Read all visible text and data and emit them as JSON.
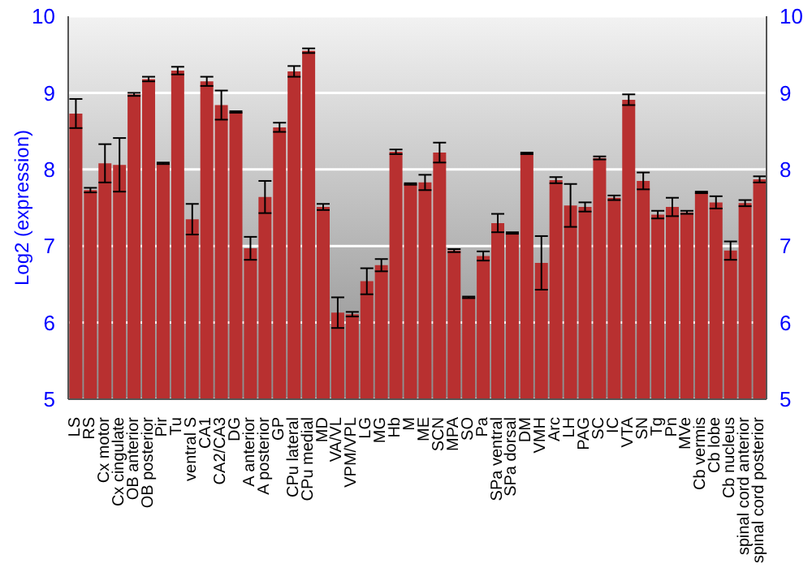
{
  "chart_data": {
    "type": "bar",
    "ylabel": "Log2 (expression)",
    "categories": [
      "LS",
      "RS",
      "Cx motor",
      "Cx cingulate",
      "OB anterior",
      "OB posterior",
      "Pir",
      "Tu",
      "ventral S",
      "CA1",
      "CA2/CA3",
      "DG",
      "A anterior",
      "A posterior",
      "GP",
      "CPu lateral",
      "CPu medial",
      "MD",
      "VA/VL",
      "VPM/VPL",
      "LG",
      "MG",
      "Hb",
      "M",
      "ME",
      "SCN",
      "MPA",
      "SO",
      "Pa",
      "SPa ventral",
      "SPa dorsal",
      "DM",
      "VMH",
      "Arc",
      "LH",
      "PAG",
      "SC",
      "IC",
      "VTA",
      "SN",
      "Tg",
      "Pn",
      "MVe",
      "Cb vermis",
      "Cb lobe",
      "Cb nucleus",
      "spinal cord anterior",
      "spinal cord posterior"
    ],
    "values": [
      8.73,
      7.73,
      8.08,
      8.06,
      8.98,
      9.18,
      8.08,
      9.29,
      7.35,
      9.15,
      8.84,
      8.75,
      6.97,
      7.64,
      8.55,
      9.28,
      9.55,
      7.51,
      6.13,
      6.11,
      6.54,
      6.75,
      8.23,
      7.81,
      7.83,
      8.22,
      6.94,
      6.33,
      6.87,
      7.3,
      7.17,
      8.21,
      6.78,
      7.86,
      7.53,
      7.51,
      8.15,
      7.63,
      8.91,
      7.85,
      7.41,
      7.51,
      7.44,
      7.7,
      7.57,
      6.94,
      7.56,
      7.87
    ],
    "errors": [
      0.19,
      0.03,
      0.25,
      0.35,
      0.02,
      0.03,
      0.01,
      0.05,
      0.2,
      0.06,
      0.19,
      0.01,
      0.15,
      0.21,
      0.06,
      0.07,
      0.03,
      0.04,
      0.2,
      0.03,
      0.17,
      0.08,
      0.03,
      0.01,
      0.1,
      0.13,
      0.02,
      0.01,
      0.06,
      0.12,
      0.01,
      0.01,
      0.35,
      0.04,
      0.28,
      0.06,
      0.02,
      0.03,
      0.07,
      0.11,
      0.05,
      0.12,
      0.02,
      0.01,
      0.08,
      0.12,
      0.04,
      0.04
    ],
    "color": "#b83030",
    "ylim": [
      5,
      10
    ],
    "yticks": [
      5,
      6,
      7,
      8,
      9,
      10
    ],
    "y2lim": [
      5,
      10
    ],
    "y2ticks": [
      5,
      6,
      7,
      8,
      9,
      10
    ],
    "grid": "y"
  }
}
